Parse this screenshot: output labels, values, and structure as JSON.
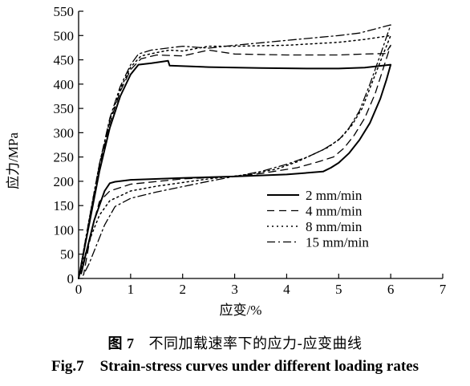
{
  "chart_data": {
    "type": "line",
    "title": "",
    "xlabel": "应变/%",
    "ylabel": "应力/MPa",
    "xlim": [
      0,
      7
    ],
    "ylim": [
      0,
      550
    ],
    "xticks": [
      "0",
      "1",
      "2",
      "3",
      "4",
      "5",
      "6",
      "7"
    ],
    "yticks": [
      "0",
      "50",
      "100",
      "150",
      "200",
      "250",
      "300",
      "350",
      "400",
      "450",
      "500",
      "550"
    ],
    "grid": false,
    "legend_position": "right-center",
    "series": [
      {
        "name": "2 mm/min",
        "dash": "solid",
        "points": [
          [
            0,
            0
          ],
          [
            0.2,
            110
          ],
          [
            0.4,
            220
          ],
          [
            0.6,
            310
          ],
          [
            0.8,
            375
          ],
          [
            1.0,
            420
          ],
          [
            1.15,
            440
          ],
          [
            1.4,
            443
          ],
          [
            1.72,
            448
          ],
          [
            1.75,
            438
          ],
          [
            2.5,
            435
          ],
          [
            3.5,
            433
          ],
          [
            4.5,
            432
          ],
          [
            5.0,
            432
          ],
          [
            5.5,
            434
          ],
          [
            6.0,
            440
          ],
          [
            5.92,
            410
          ],
          [
            5.8,
            370
          ],
          [
            5.6,
            320
          ],
          [
            5.4,
            285
          ],
          [
            5.2,
            258
          ],
          [
            5.0,
            238
          ],
          [
            4.85,
            228
          ],
          [
            4.7,
            220
          ],
          [
            4.0,
            214
          ],
          [
            3.0,
            210
          ],
          [
            2.0,
            207
          ],
          [
            1.0,
            203
          ],
          [
            0.7,
            199
          ],
          [
            0.6,
            196
          ],
          [
            0.5,
            180
          ],
          [
            0.3,
            120
          ],
          [
            0.15,
            55
          ],
          [
            0.05,
            10
          ]
        ]
      },
      {
        "name": "4 mm/min",
        "dash": "dashed",
        "points": [
          [
            0,
            0
          ],
          [
            0.2,
            115
          ],
          [
            0.4,
            230
          ],
          [
            0.6,
            320
          ],
          [
            0.8,
            385
          ],
          [
            1.0,
            430
          ],
          [
            1.2,
            452
          ],
          [
            1.5,
            460
          ],
          [
            2.0,
            458
          ],
          [
            2.5,
            470
          ],
          [
            3.0,
            462
          ],
          [
            4.0,
            460
          ],
          [
            5.0,
            460
          ],
          [
            5.5,
            462
          ],
          [
            5.9,
            463
          ],
          [
            6.0,
            480
          ],
          [
            5.85,
            430
          ],
          [
            5.7,
            380
          ],
          [
            5.5,
            330
          ],
          [
            5.3,
            295
          ],
          [
            5.1,
            268
          ],
          [
            4.9,
            250
          ],
          [
            4.6,
            240
          ],
          [
            4.2,
            228
          ],
          [
            3.5,
            216
          ],
          [
            3.0,
            210
          ],
          [
            2.0,
            205
          ],
          [
            1.0,
            194
          ],
          [
            0.6,
            180
          ],
          [
            0.4,
            158
          ],
          [
            0.3,
            120
          ],
          [
            0.2,
            70
          ],
          [
            0.1,
            10
          ]
        ]
      },
      {
        "name": "8 mm/min",
        "dash": "dotted",
        "points": [
          [
            0,
            0
          ],
          [
            0.2,
            120
          ],
          [
            0.4,
            235
          ],
          [
            0.6,
            325
          ],
          [
            0.8,
            390
          ],
          [
            1.0,
            435
          ],
          [
            1.2,
            458
          ],
          [
            1.5,
            465
          ],
          [
            1.75,
            470
          ],
          [
            2.0,
            468
          ],
          [
            2.5,
            478
          ],
          [
            3.0,
            478
          ],
          [
            4.0,
            480
          ],
          [
            5.0,
            486
          ],
          [
            5.5,
            492
          ],
          [
            6.0,
            500
          ],
          [
            5.85,
            460
          ],
          [
            5.65,
            405
          ],
          [
            5.45,
            350
          ],
          [
            5.25,
            315
          ],
          [
            5.05,
            290
          ],
          [
            4.8,
            270
          ],
          [
            4.5,
            255
          ],
          [
            4.2,
            240
          ],
          [
            3.8,
            225
          ],
          [
            3.2,
            213
          ],
          [
            2.5,
            205
          ],
          [
            1.5,
            190
          ],
          [
            1.0,
            180
          ],
          [
            0.6,
            160
          ],
          [
            0.4,
            130
          ],
          [
            0.25,
            90
          ],
          [
            0.1,
            40
          ],
          [
            0.03,
            8
          ]
        ]
      },
      {
        "name": "15 mm/min",
        "dash": "dashdot",
        "points": [
          [
            0,
            0
          ],
          [
            0.2,
            120
          ],
          [
            0.4,
            235
          ],
          [
            0.6,
            330
          ],
          [
            0.8,
            395
          ],
          [
            1.0,
            440
          ],
          [
            1.15,
            462
          ],
          [
            1.4,
            470
          ],
          [
            1.7,
            474
          ],
          [
            2.0,
            478
          ],
          [
            2.5,
            474
          ],
          [
            3.0,
            480
          ],
          [
            4.0,
            490
          ],
          [
            5.0,
            500
          ],
          [
            5.4,
            505
          ],
          [
            6.0,
            522
          ],
          [
            5.8,
            460
          ],
          [
            5.6,
            400
          ],
          [
            5.4,
            345
          ],
          [
            5.2,
            310
          ],
          [
            5.0,
            285
          ],
          [
            4.7,
            265
          ],
          [
            4.4,
            250
          ],
          [
            4.0,
            235
          ],
          [
            3.5,
            220
          ],
          [
            2.5,
            200
          ],
          [
            1.5,
            178
          ],
          [
            1.0,
            165
          ],
          [
            0.7,
            148
          ],
          [
            0.5,
            110
          ],
          [
            0.35,
            70
          ],
          [
            0.2,
            30
          ],
          [
            0.08,
            5
          ]
        ]
      }
    ]
  },
  "caption": {
    "cn_fig_number": "图 7",
    "cn_text": "不同加载速率下的应力-应变曲线",
    "en_fig_number": "Fig.7",
    "en_text": "Strain-stress curves under different loading rates"
  }
}
